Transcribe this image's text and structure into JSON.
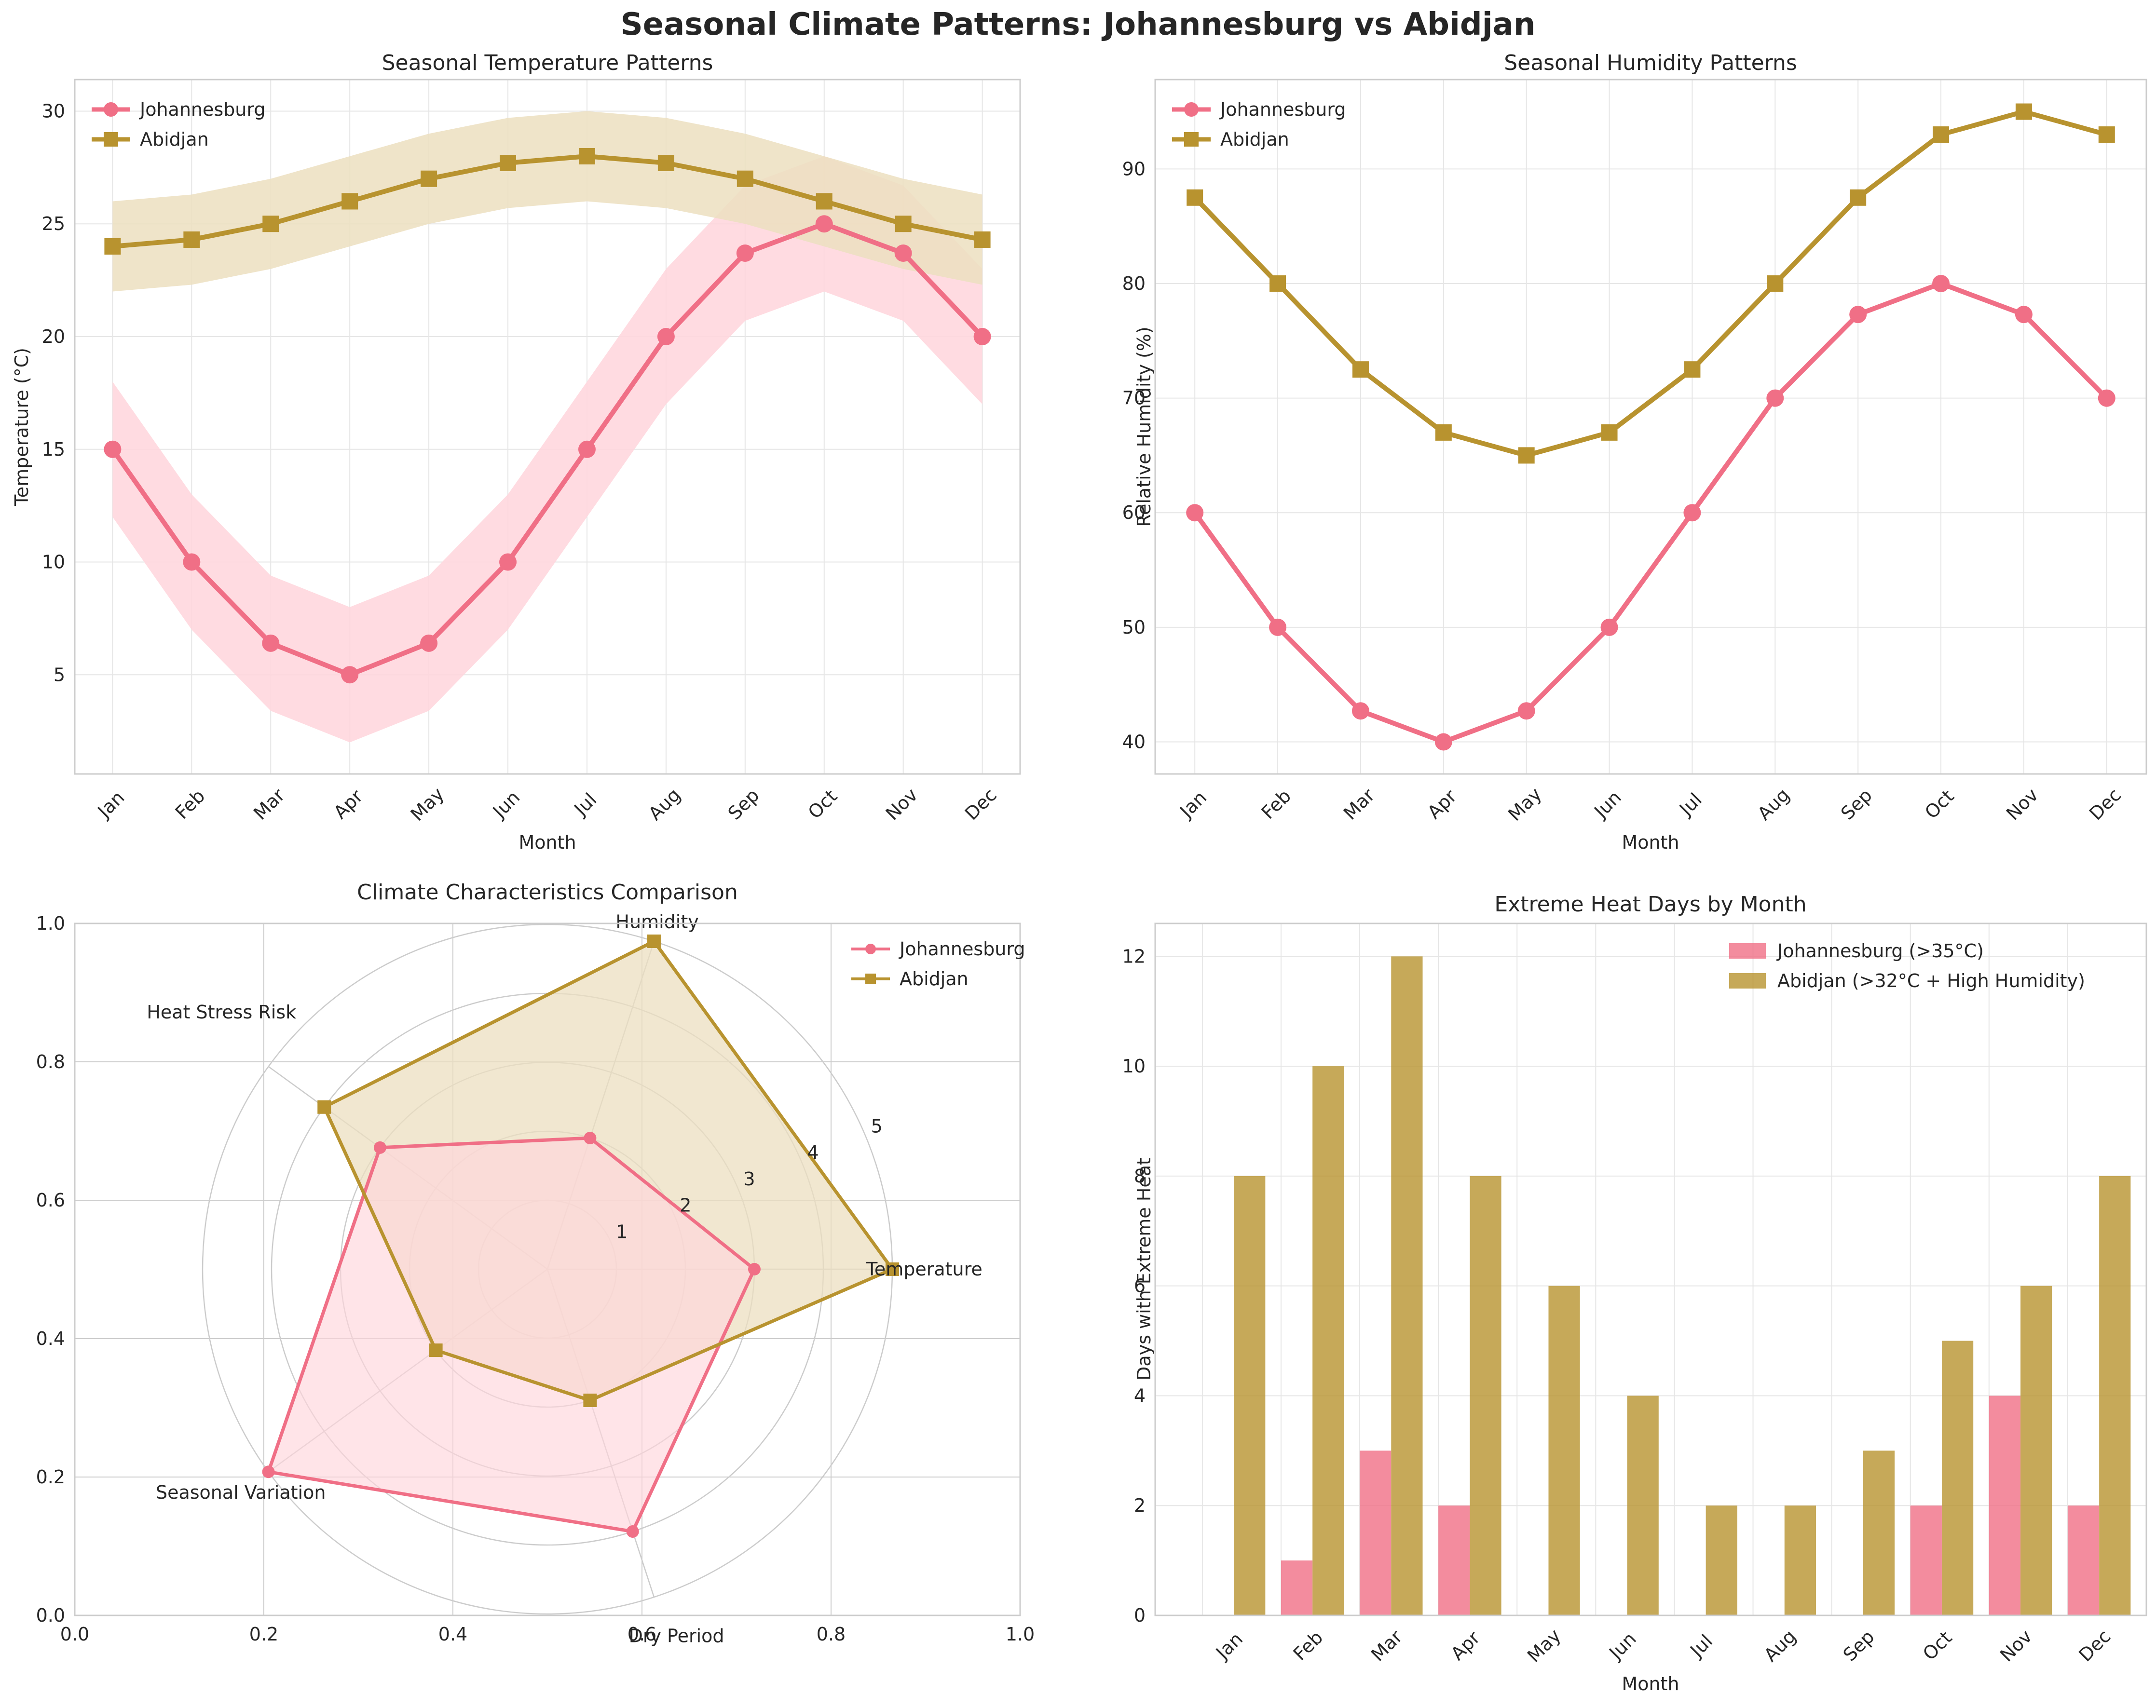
{
  "title": "Seasonal Climate Patterns: Johannesburg vs Abidjan",
  "colors": {
    "johannesburg": "#f06f86",
    "abidjan": "#b8932f",
    "johannesburg_band": "#ffd5dc",
    "abidjan_band": "#ecdfc0",
    "grid": "#e6e6e6",
    "axis": "#cccccc",
    "text": "#262626"
  },
  "chart_data": [
    {
      "type": "line",
      "title": "Seasonal Temperature Patterns",
      "xlabel": "Month",
      "ylabel": "Temperature (°C)",
      "categories": [
        "Jan",
        "Feb",
        "Mar",
        "Apr",
        "May",
        "Jun",
        "Jul",
        "Aug",
        "Sep",
        "Oct",
        "Nov",
        "Dec"
      ],
      "ylim": [
        0.6,
        31.4
      ],
      "yticks": [
        5,
        10,
        15,
        20,
        25,
        30
      ],
      "grid": true,
      "legend": "top-left",
      "series": [
        {
          "name": "Johannesburg",
          "marker": "circle",
          "values": [
            15,
            10,
            6.4,
            5,
            6.4,
            10,
            15,
            20,
            23.7,
            25,
            23.7,
            20
          ],
          "band_low": [
            12,
            7,
            3.4,
            2,
            3.4,
            7,
            12,
            17,
            20.7,
            22,
            20.7,
            17
          ],
          "band_high": [
            18,
            13,
            9.4,
            8,
            9.4,
            13,
            18,
            23,
            26.7,
            28,
            26.7,
            23
          ]
        },
        {
          "name": "Abidjan",
          "marker": "square",
          "values": [
            24,
            24.3,
            25,
            26,
            27,
            27.7,
            28,
            27.7,
            27,
            26,
            25,
            24.3
          ],
          "band_low": [
            22,
            22.3,
            23,
            24,
            25,
            25.7,
            26,
            25.7,
            25,
            24,
            23,
            22.3
          ],
          "band_high": [
            26,
            26.3,
            27,
            28,
            29,
            29.7,
            30,
            29.7,
            29,
            28,
            27,
            26.3
          ]
        }
      ]
    },
    {
      "type": "line",
      "title": "Seasonal Humidity Patterns",
      "xlabel": "Month",
      "ylabel": "Relative Humidity (%)",
      "categories": [
        "Jan",
        "Feb",
        "Mar",
        "Apr",
        "May",
        "Jun",
        "Jul",
        "Aug",
        "Sep",
        "Oct",
        "Nov",
        "Dec"
      ],
      "ylim": [
        37.2,
        97.8
      ],
      "yticks": [
        40,
        50,
        60,
        70,
        80,
        90
      ],
      "grid": true,
      "legend": "top-left",
      "series": [
        {
          "name": "Johannesburg",
          "marker": "circle",
          "values": [
            60,
            50,
            42.7,
            40,
            42.7,
            50,
            60,
            70,
            77.3,
            80,
            77.3,
            70
          ]
        },
        {
          "name": "Abidjan",
          "marker": "square",
          "values": [
            87.5,
            80,
            72.5,
            67,
            65,
            67,
            72.5,
            80,
            87.5,
            93,
            95,
            93
          ]
        }
      ]
    },
    {
      "type": "radar",
      "title": "Climate Characteristics Comparison",
      "categories": [
        "Temperature",
        "Humidity",
        "Heat Stress Risk",
        "Seasonal Variation",
        "Dry Period"
      ],
      "rlim": [
        0,
        5
      ],
      "rticks": [
        1,
        2,
        3,
        4,
        5
      ],
      "frame_ticks": [
        0.0,
        0.2,
        0.4,
        0.6,
        0.8,
        1.0
      ],
      "frame_tick_labels": [
        "0.0",
        "0.2",
        "0.4",
        "0.6",
        "0.8",
        "1.0"
      ],
      "legend": "top-right",
      "series": [
        {
          "name": "Johannesburg",
          "marker": "circle",
          "values": [
            3,
            2,
            3,
            5,
            4
          ]
        },
        {
          "name": "Abidjan",
          "marker": "square",
          "values": [
            5,
            5,
            4,
            2,
            2
          ]
        }
      ]
    },
    {
      "type": "bar",
      "title": "Extreme Heat Days by Month",
      "xlabel": "Month",
      "ylabel": "Days with Extreme Heat",
      "categories": [
        "Jan",
        "Feb",
        "Mar",
        "Apr",
        "May",
        "Jun",
        "Jul",
        "Aug",
        "Sep",
        "Oct",
        "Nov",
        "Dec"
      ],
      "ylim": [
        0,
        12.6
      ],
      "yticks": [
        0,
        2,
        4,
        6,
        8,
        10,
        12
      ],
      "grid": true,
      "legend": "top-right",
      "series": [
        {
          "name": "Johannesburg (>35°C)",
          "values": [
            0,
            1,
            3,
            2,
            0,
            0,
            0,
            0,
            0,
            2,
            4,
            2
          ]
        },
        {
          "name": "Abidjan (>32°C + High Humidity)",
          "values": [
            8,
            10,
            12,
            8,
            6,
            4,
            2,
            2,
            3,
            5,
            6,
            8
          ]
        }
      ]
    }
  ]
}
